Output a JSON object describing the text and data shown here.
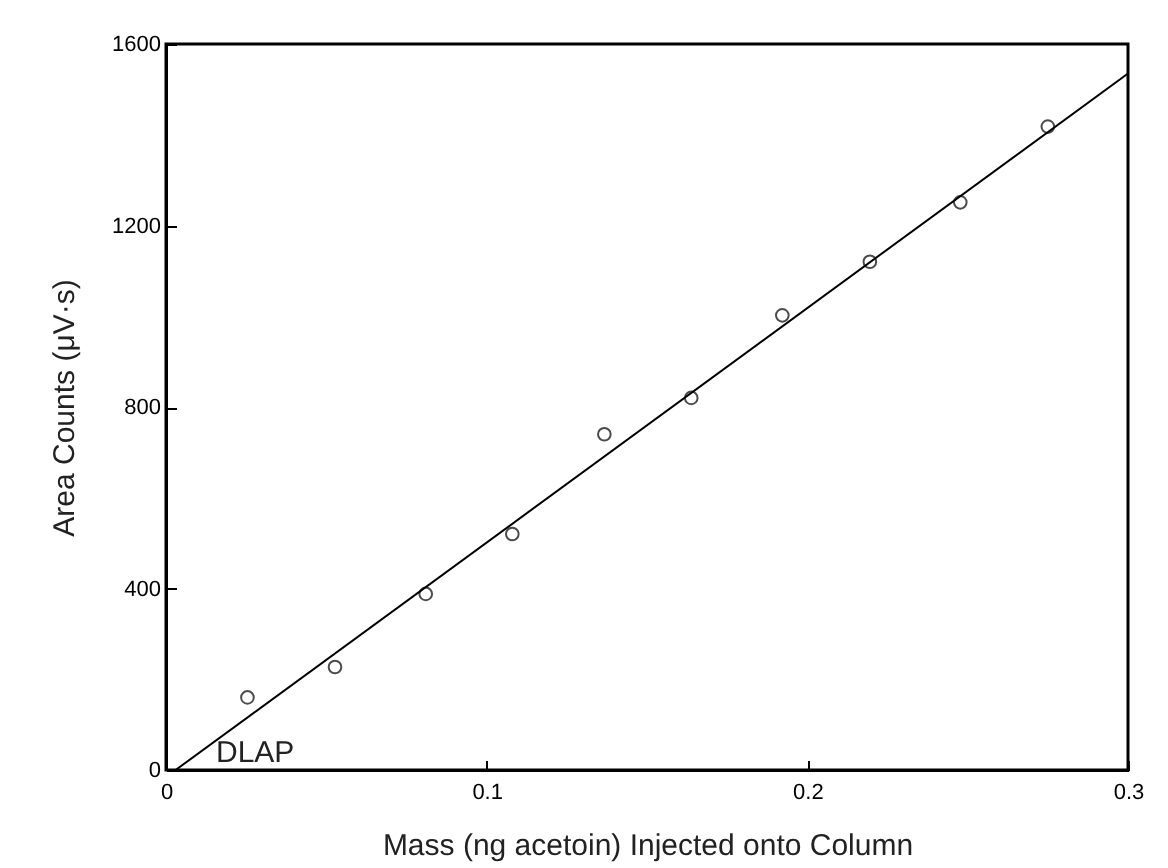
{
  "chart_data": {
    "type": "scatter",
    "xlabel": "Mass (ng acetoin) Injected onto Column",
    "ylabel": "Area Counts (μV·s)",
    "xlim": [
      0,
      0.3
    ],
    "xticks": [
      0,
      0.1,
      0.2,
      0.3
    ],
    "ylim": [
      0,
      1600
    ],
    "yticks": [
      0,
      400,
      800,
      1200,
      1600
    ],
    "grid": false,
    "series": [
      {
        "color": "#000000",
        "marker": "circle",
        "x": [
          0.0254,
          0.0527,
          0.081,
          0.108,
          0.1367,
          0.1638,
          0.1922,
          0.2195,
          0.2477,
          0.275
        ],
        "values": [
          160,
          227,
          388,
          520,
          740,
          820,
          1002,
          1120,
          1251,
          1418
        ]
      },
      {
        "type": "line",
        "marker": "none",
        "color": "#000000",
        "x": [
          0.003,
          0.3
        ],
        "values": [
          0,
          1535
        ]
      }
    ],
    "annotations": [
      "DLAP"
    ]
  }
}
